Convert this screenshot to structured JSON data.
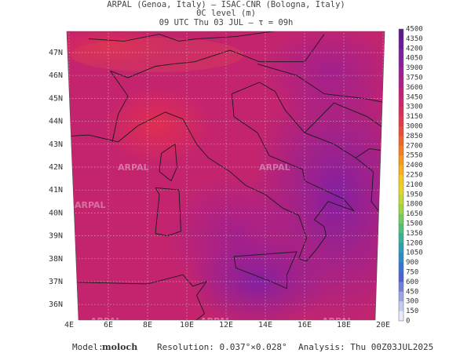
{
  "header": {
    "line1": "ARPAL (Genoa, Italy)  –  ISAC-CNR (Bologna, Italy)",
    "line2": "0C level (m)",
    "line3": "09 UTC Thu 03 JUL  –  τ = 09h"
  },
  "map": {
    "lat_labels": [
      "47N",
      "46N",
      "45N",
      "44N",
      "43N",
      "42N",
      "41N",
      "40N",
      "39N",
      "38N",
      "37N",
      "36N"
    ],
    "lon_labels": [
      "4E",
      "6E",
      "8E",
      "10E",
      "12E",
      "14E",
      "16E",
      "18E",
      "20E"
    ],
    "watermark": "ARPAL"
  },
  "colorbar": {
    "labels": [
      "4500",
      "4350",
      "4200",
      "4050",
      "3900",
      "3750",
      "3600",
      "3450",
      "3300",
      "3150",
      "3000",
      "2850",
      "2700",
      "2550",
      "2400",
      "2250",
      "2100",
      "1950",
      "1800",
      "1650",
      "1500",
      "1350",
      "1200",
      "1050",
      "900",
      "750",
      "600",
      "450",
      "300",
      "150",
      "0"
    ]
  },
  "footer": {
    "model_label": "Model:",
    "model": "moloch",
    "resolution": "Resolution: 0.037°×0.028°",
    "analysis": "Analysis: Thu 00Z03JUL2025"
  }
}
